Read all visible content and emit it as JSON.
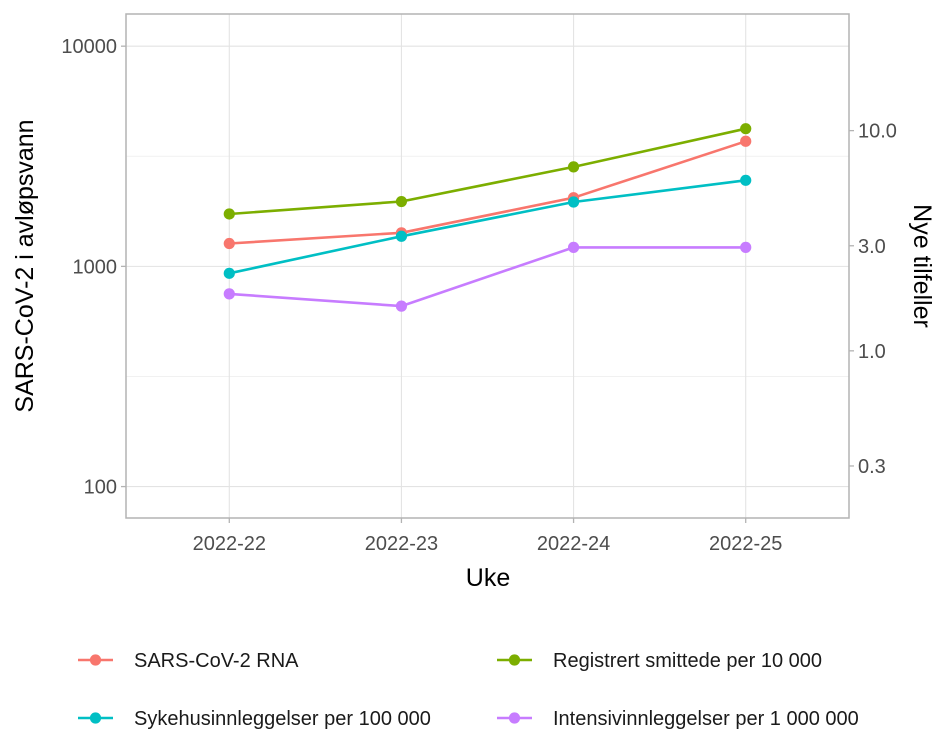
{
  "chart_data": {
    "type": "line",
    "x": [
      "2022-22",
      "2022-23",
      "2022-24",
      "2022-25"
    ],
    "xlabel": "Uke",
    "ylabel": "SARS-CoV-2 i avløpsvann",
    "ylabel_right": "Nye tilfeller",
    "y_scale": "log",
    "ylim": [
      72,
      14000
    ],
    "y_ticks": [
      100,
      1000,
      10000
    ],
    "y_tick_labels": [
      "100",
      "1000",
      "10000"
    ],
    "y_right_scale": "log",
    "y_right_ticks": [
      0.3,
      1.0,
      3.0,
      10.0
    ],
    "y_right_tick_labels": [
      "0.3",
      "1.0",
      "3.0",
      "10.0"
    ],
    "y_right_to_left_factor": 413.5,
    "grid": true,
    "legend_position": "bottom",
    "series": [
      {
        "name": "SARS-CoV-2 RNA",
        "color": "#F8766D",
        "axis": "left",
        "values": [
          1270,
          1420,
          2050,
          3700
        ]
      },
      {
        "name": "Registrert smittede per 10 000",
        "color": "#7CAE00",
        "axis": "left",
        "values": [
          1730,
          1970,
          2830,
          4220
        ]
      },
      {
        "name": "Sykehusinnleggelser per 100 000",
        "color": "#00BFC4",
        "axis": "left",
        "values": [
          930,
          1370,
          1960,
          2460
        ]
      },
      {
        "name": "Intensivinnleggelser per 1 000 000",
        "color": "#C77CFF",
        "axis": "left",
        "values": [
          750,
          660,
          1220,
          1220
        ]
      }
    ],
    "legend_order": [
      "SARS-CoV-2 RNA",
      "Registrert smittede per 10 000",
      "Sykehusinnleggelser per 100 000",
      "Intensivinnleggelser per 1 000 000"
    ]
  }
}
